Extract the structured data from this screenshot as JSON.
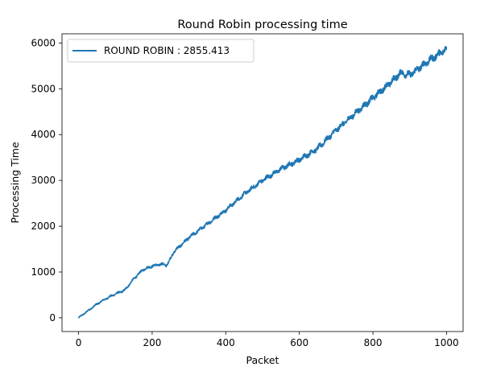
{
  "chart_data": {
    "type": "line",
    "title": "Round Robin processing time",
    "xlabel": "Packet",
    "ylabel": "Processing Time",
    "xlim": [
      -45,
      1045
    ],
    "ylim": [
      -300,
      6200
    ],
    "xticks": [
      0,
      200,
      400,
      600,
      800,
      1000
    ],
    "yticks": [
      0,
      1000,
      2000,
      3000,
      4000,
      5000,
      6000
    ],
    "grid": false,
    "legend_position": "top-left",
    "series": [
      {
        "name": "ROUND ROBIN : 2855.413",
        "color": "#1f77b4",
        "x": [
          0,
          25,
          50,
          75,
          100,
          125,
          150,
          175,
          200,
          225,
          240,
          260,
          300,
          350,
          400,
          450,
          500,
          550,
          600,
          650,
          700,
          750,
          800,
          850,
          875,
          900,
          950,
          1000
        ],
        "y": [
          0,
          150,
          300,
          420,
          520,
          600,
          850,
          1050,
          1130,
          1170,
          1150,
          1450,
          1750,
          2050,
          2350,
          2700,
          3000,
          3250,
          3450,
          3700,
          4100,
          4450,
          4800,
          5150,
          5350,
          5300,
          5600,
          5870
        ]
      }
    ]
  }
}
